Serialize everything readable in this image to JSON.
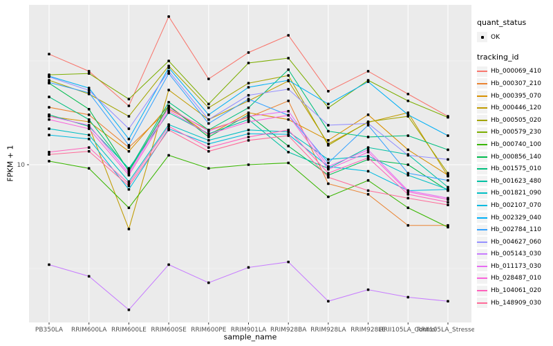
{
  "chart_data": {
    "type": "line",
    "xlabel": "sample_name",
    "ylabel": "FPKM + 1",
    "y_scale": "log10",
    "y_ticks": [
      {
        "value": 10,
        "label": "10"
      }
    ],
    "y_minor_ticks": [
      3.162,
      31.62
    ],
    "grid": true,
    "legend_position": "right",
    "point_shape": "small-black-square",
    "categories": [
      "PB350LA",
      "RRIM600LA",
      "RRIM600LE",
      "RRIM600SE",
      "RRIM600PE",
      "RRIM901LA",
      "RRIM928BA",
      "RRIM928LA",
      "RRIM928LE",
      "RRII105LA_Control",
      "RRII105LA_Stressed"
    ],
    "series": [
      {
        "name": "Hb_000069_410",
        "color": "#F8766D",
        "values": [
          34.1,
          28.2,
          19.2,
          51.7,
          25.9,
          34.7,
          42.0,
          22.6,
          28.2,
          21.9,
          17.1
        ]
      },
      {
        "name": "Hb_000307_210",
        "color": "#EA8331",
        "values": [
          18.9,
          17.4,
          12.1,
          18.5,
          14.7,
          16.9,
          20.3,
          8.1,
          7.2,
          5.1,
          5.1
        ]
      },
      {
        "name": "Hb_000395_070",
        "color": "#D89000",
        "values": [
          17.1,
          16.1,
          11.6,
          19.2,
          13.9,
          17.8,
          16.5,
          13.1,
          17.4,
          11.8,
          8.9
        ]
      },
      {
        "name": "Hb_000446_120",
        "color": "#C09B00",
        "values": [
          17.4,
          15.3,
          4.9,
          22.9,
          16.5,
          20.3,
          25.3,
          12.6,
          16.0,
          17.8,
          8.8
        ]
      },
      {
        "name": "Hb_000505_020",
        "color": "#A3A500",
        "values": [
          25.5,
          21.9,
          17.1,
          29.9,
          18.8,
          24.7,
          26.9,
          12.4,
          16.1,
          17.1,
          9.1
        ]
      },
      {
        "name": "Hb_000579_230",
        "color": "#7CAE00",
        "values": [
          27.1,
          27.5,
          20.7,
          31.6,
          19.6,
          30.9,
          32.6,
          18.8,
          25.5,
          20.3,
          16.9
        ]
      },
      {
        "name": "Hb_000740_100",
        "color": "#39B600",
        "values": [
          10.4,
          9.6,
          6.2,
          11.1,
          9.6,
          10.0,
          10.2,
          7.0,
          8.4,
          6.2,
          5.0
        ]
      },
      {
        "name": "Hb_000856_140",
        "color": "#00BB4E",
        "values": [
          24.7,
          18.5,
          9.3,
          19.2,
          13.6,
          17.4,
          12.3,
          8.9,
          10.6,
          10.0,
          7.5
        ]
      },
      {
        "name": "Hb_001575_010",
        "color": "#00BF7D",
        "values": [
          21.2,
          16.5,
          9.4,
          20.0,
          14.7,
          18.8,
          28.7,
          14.5,
          13.6,
          13.8,
          11.8
        ]
      },
      {
        "name": "Hb_001623_480",
        "color": "#00C1A3",
        "values": [
          17.4,
          15.3,
          9.6,
          17.8,
          14.1,
          16.5,
          11.5,
          9.6,
          12.1,
          11.2,
          7.8
        ]
      },
      {
        "name": "Hb_001821_090",
        "color": "#00BFC4",
        "values": [
          14.9,
          13.9,
          8.3,
          15.6,
          13.1,
          14.7,
          14.4,
          10.6,
          11.0,
          8.9,
          7.6
        ]
      },
      {
        "name": "Hb_002107_070",
        "color": "#00BAE0",
        "values": [
          13.9,
          13.3,
          7.6,
          14.9,
          12.6,
          14.1,
          14.0,
          9.8,
          9.3,
          7.5,
          7.6
        ]
      },
      {
        "name": "Hb_002329_040",
        "color": "#00B0F6",
        "values": [
          26.7,
          23.4,
          13.3,
          29.3,
          17.4,
          23.6,
          25.5,
          19.6,
          25.1,
          17.4,
          13.8
        ]
      },
      {
        "name": "Hb_002784_110",
        "color": "#35A2FF",
        "values": [
          24.9,
          22.2,
          12.4,
          27.5,
          15.8,
          20.7,
          17.3,
          10.2,
          15.5,
          9.1,
          8.4
        ]
      },
      {
        "name": "Hb_004627_060",
        "color": "#9590FF",
        "values": [
          26.5,
          22.8,
          14.9,
          28.2,
          16.5,
          21.6,
          23.1,
          15.5,
          15.8,
          11.1,
          10.6
        ]
      },
      {
        "name": "Hb_005143_030",
        "color": "#C77CFF",
        "values": [
          3.3,
          2.9,
          2.0,
          3.3,
          2.7,
          3.2,
          3.4,
          2.2,
          2.5,
          2.3,
          2.2
        ]
      },
      {
        "name": "Hb_011173_030",
        "color": "#E76BF3",
        "values": [
          17.1,
          15.5,
          9.1,
          18.8,
          14.5,
          17.1,
          18.1,
          9.8,
          11.8,
          7.5,
          6.9
        ]
      },
      {
        "name": "Hb_028487_010",
        "color": "#FA62DB",
        "values": [
          16.5,
          14.9,
          8.9,
          18.2,
          14.0,
          16.1,
          17.3,
          9.5,
          11.5,
          7.4,
          6.8
        ]
      },
      {
        "name": "Hb_104061_020",
        "color": "#FF62BC",
        "values": [
          11.5,
          12.1,
          8.1,
          15.3,
          12.1,
          13.6,
          14.7,
          9.1,
          10.8,
          7.2,
          6.6
        ]
      },
      {
        "name": "Hb_148909_030",
        "color": "#FF6A98",
        "values": [
          11.2,
          11.6,
          7.9,
          14.7,
          11.6,
          13.1,
          13.8,
          8.7,
          7.5,
          6.9,
          6.4
        ]
      }
    ],
    "legend": {
      "quant_status_title": "quant_status",
      "quant_status_items": [
        {
          "label": "OK",
          "shape": "point",
          "color": "#000000"
        }
      ],
      "tracking_title": "tracking_id"
    },
    "style": {
      "panel_bg": "#EBEBEB",
      "gridline_color": "#FFFFFF",
      "tick_label_color": "#4D4D4D",
      "point_color": "#000000",
      "legend_key_bg": "#F2F2F2"
    }
  }
}
